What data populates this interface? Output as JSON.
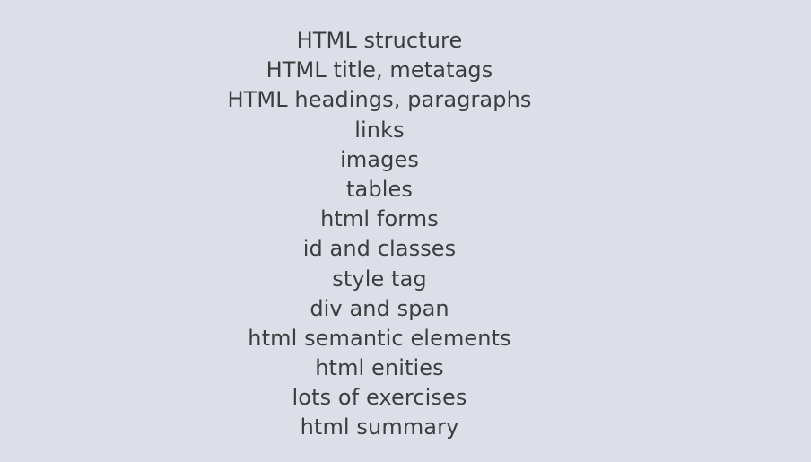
{
  "topics": [
    "HTML structure",
    "HTML title, metatags",
    "HTML headings, paragraphs",
    "links",
    "images",
    "tables",
    "html forms",
    "id and classes",
    "style tag",
    "div and span",
    "html semantic elements",
    "html enities",
    "lots of exercises",
    "html summary"
  ]
}
